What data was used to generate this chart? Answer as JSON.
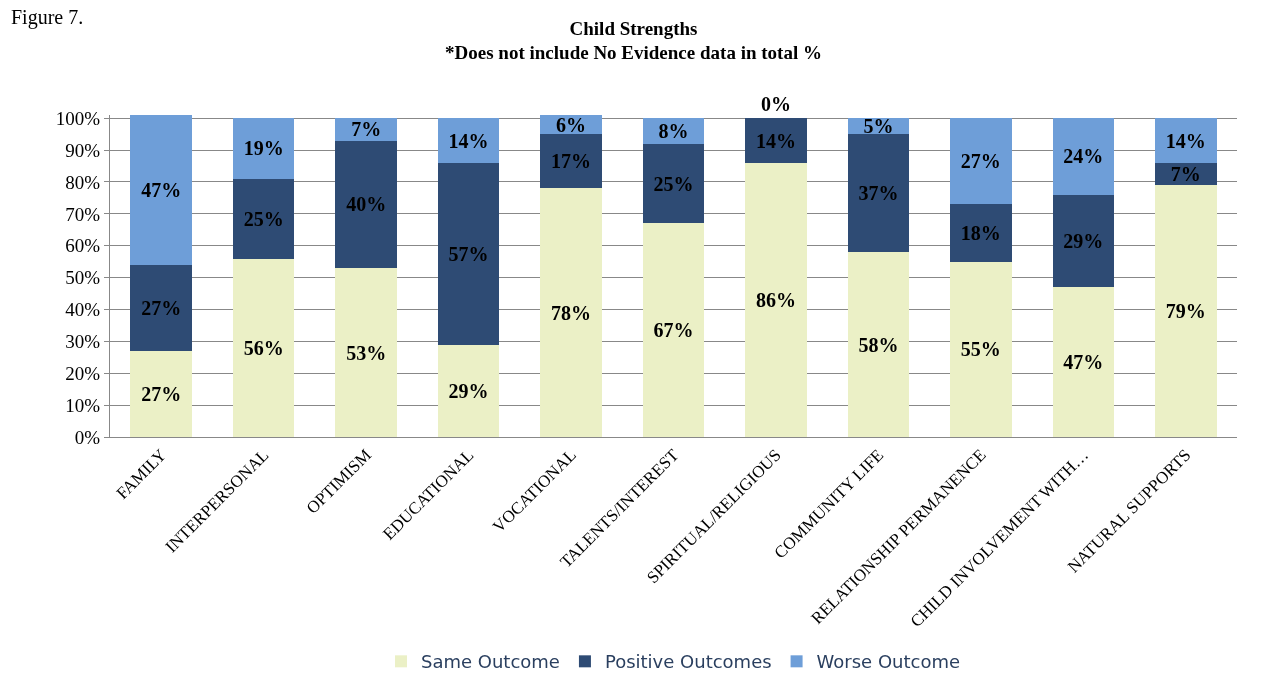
{
  "chart_data": {
    "type": "bar",
    "stacked": true,
    "title": "Child Strengths",
    "subtitle": "*Does not include No Evidence data in total %",
    "annotations": [
      "Figure 7."
    ],
    "categories": [
      "FAMILY",
      "INTERPERSONAL",
      "OPTIMISM",
      "EDUCATIONAL",
      "VOCATIONAL",
      "TALENTS/INTEREST",
      "SPIRITUAL/RELIGIOUS",
      "COMMUNITY LIFE",
      "RELATIONSHIP PERMANENCE",
      "CHILD INVOLVEMENT WITH…",
      "NATURAL SUPPORTS"
    ],
    "series": [
      {
        "name": "Same Outcome",
        "color": "#ebf0c6",
        "values": [
          27,
          56,
          53,
          29,
          78,
          67,
          86,
          58,
          55,
          47,
          79
        ],
        "value_labels": [
          "27%",
          "56%",
          "53%",
          "29%",
          "78%",
          "67%",
          "86%",
          "58%",
          "55%",
          "47%",
          "79%"
        ]
      },
      {
        "name": "Positive Outcomes",
        "color": "#2e4b74",
        "values": [
          27,
          25,
          40,
          57,
          17,
          25,
          14,
          37,
          18,
          29,
          7
        ],
        "value_labels": [
          "27%",
          "25%",
          "40%",
          "57%",
          "17%",
          "25%",
          "14%",
          "37%",
          "18%",
          "29%",
          "7%"
        ]
      },
      {
        "name": "Worse Outcome",
        "color": "#6e9ed8",
        "values": [
          47,
          19,
          7,
          14,
          6,
          8,
          0,
          5,
          27,
          24,
          14
        ],
        "value_labels": [
          "47%",
          "19%",
          "7%",
          "14%",
          "6%",
          "8%",
          "0%",
          "5%",
          "27%",
          "24%",
          "14%"
        ]
      }
    ],
    "ylim": [
      0,
      101
    ],
    "yticks": [
      {
        "value": 0,
        "label": "0%"
      },
      {
        "value": 10,
        "label": "10%"
      },
      {
        "value": 20,
        "label": "20%"
      },
      {
        "value": 30,
        "label": "30%"
      },
      {
        "value": 40,
        "label": "40%"
      },
      {
        "value": 50,
        "label": "50%"
      },
      {
        "value": 60,
        "label": "60%"
      },
      {
        "value": 70,
        "label": "70%"
      },
      {
        "value": 80,
        "label": "80%"
      },
      {
        "value": 90,
        "label": "90%"
      },
      {
        "value": 100,
        "label": "100%"
      }
    ],
    "grid": "y",
    "legend": "bottom"
  }
}
